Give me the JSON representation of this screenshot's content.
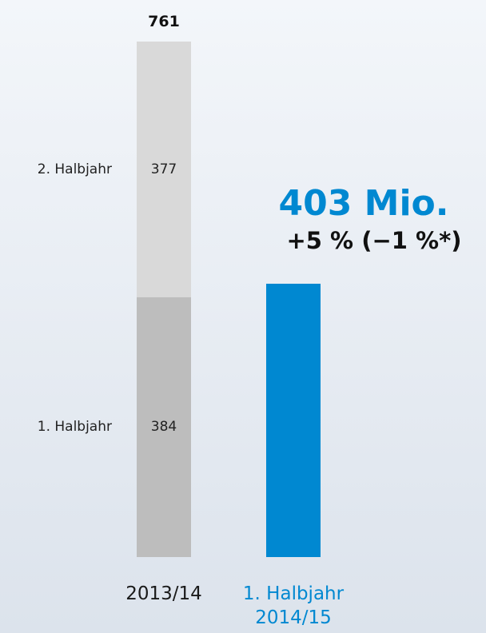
{
  "chart_data": {
    "type": "bar",
    "stacked": true,
    "categories": [
      "2013/14",
      "1. Halbjahr\n2014/15"
    ],
    "category_colors": [
      "#1a1a1a",
      "#0088d1"
    ],
    "series": [
      {
        "name": "1. Halbjahr",
        "colors": [
          "#bdbdbd",
          "#0088d1"
        ],
        "values": [
          384,
          403
        ],
        "value_labels": [
          "384",
          "403 Mio."
        ]
      },
      {
        "name": "2. Halbjahr",
        "color": "#d9d9d9",
        "values": [
          377,
          null
        ]
      }
    ],
    "totals": [
      761
    ],
    "annotation": "+5 % (−1 %*)",
    "ylim": [
      0,
      761
    ]
  }
}
